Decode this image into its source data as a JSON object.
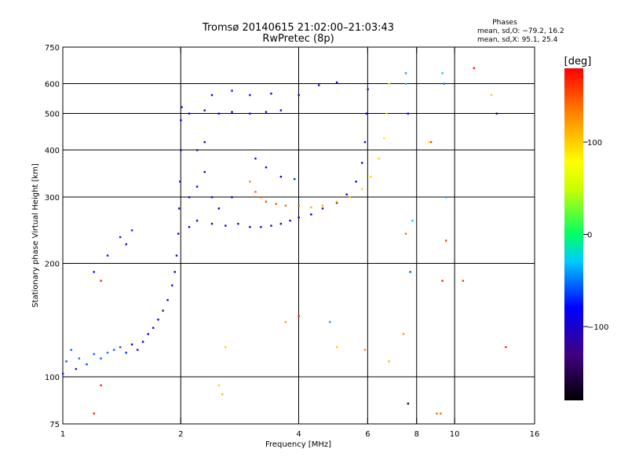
{
  "header": {
    "title_line1": "Tromsø 20140615 21:02:00–21:03:43",
    "title_line2": "RwPretec (8p)",
    "stats_title": "Phases",
    "stats_o": "mean, sd,O: −79.2, 16.2",
    "stats_x": "mean, sd,X:  95.1, 25.4"
  },
  "colorbar": {
    "label": "[deg]",
    "ticks": [
      {
        "value": 100,
        "label": "100"
      },
      {
        "value": 0,
        "label": "0"
      },
      {
        "value": -100,
        "label": "−100"
      }
    ],
    "range": [
      -180,
      180
    ]
  },
  "chart_data": {
    "type": "scatter",
    "xlabel": "Frequency [MHz]",
    "ylabel": "Stationary phase Virtual Height [km]",
    "xscale": "log",
    "yscale": "log",
    "xlim": [
      1,
      16
    ],
    "ylim": [
      75,
      750
    ],
    "xticks": [
      {
        "value": 1,
        "label": "1"
      },
      {
        "value": 2,
        "label": "2"
      },
      {
        "value": 4,
        "label": "4"
      },
      {
        "value": 6,
        "label": "6"
      },
      {
        "value": 8,
        "label": "8"
      },
      {
        "value": 10,
        "label": "10"
      },
      {
        "value": 16,
        "label": "16"
      }
    ],
    "yticks": [
      {
        "value": 75,
        "label": "75"
      },
      {
        "value": 100,
        "label": "100"
      },
      {
        "value": 200,
        "label": "200"
      },
      {
        "value": 300,
        "label": "300"
      },
      {
        "value": 400,
        "label": "400"
      },
      {
        "value": 500,
        "label": "500"
      },
      {
        "value": 600,
        "label": "600"
      },
      {
        "value": 750,
        "label": "750"
      }
    ],
    "xgrid": [
      2,
      4,
      6,
      8,
      10
    ],
    "ygrid": [
      100,
      200,
      300,
      400,
      500,
      600
    ],
    "color_by": "phase [deg]",
    "points": [
      {
        "f": 1.0,
        "h": 102,
        "p": -70
      },
      {
        "f": 1.02,
        "h": 110,
        "p": -60
      },
      {
        "f": 1.05,
        "h": 118,
        "p": -55
      },
      {
        "f": 1.08,
        "h": 105,
        "p": -75
      },
      {
        "f": 1.1,
        "h": 112,
        "p": -50
      },
      {
        "f": 1.15,
        "h": 108,
        "p": -65
      },
      {
        "f": 1.2,
        "h": 115,
        "p": -55
      },
      {
        "f": 1.25,
        "h": 112,
        "p": -60
      },
      {
        "f": 1.3,
        "h": 116,
        "p": -50
      },
      {
        "f": 1.35,
        "h": 118,
        "p": -55
      },
      {
        "f": 1.4,
        "h": 120,
        "p": -60
      },
      {
        "f": 1.45,
        "h": 116,
        "p": -70
      },
      {
        "f": 1.5,
        "h": 122,
        "p": -80
      },
      {
        "f": 1.55,
        "h": 118,
        "p": -75
      },
      {
        "f": 1.6,
        "h": 124,
        "p": -85
      },
      {
        "f": 1.65,
        "h": 130,
        "p": -90
      },
      {
        "f": 1.7,
        "h": 135,
        "p": -95
      },
      {
        "f": 1.75,
        "h": 142,
        "p": -90
      },
      {
        "f": 1.8,
        "h": 150,
        "p": -95
      },
      {
        "f": 1.85,
        "h": 160,
        "p": -90
      },
      {
        "f": 1.9,
        "h": 175,
        "p": -95
      },
      {
        "f": 1.93,
        "h": 190,
        "p": -90
      },
      {
        "f": 1.95,
        "h": 210,
        "p": -85
      },
      {
        "f": 1.97,
        "h": 240,
        "p": -90
      },
      {
        "f": 1.98,
        "h": 280,
        "p": -95
      },
      {
        "f": 1.99,
        "h": 330,
        "p": -90
      },
      {
        "f": 2.0,
        "h": 400,
        "p": -95
      },
      {
        "f": 2.0,
        "h": 480,
        "p": -90
      },
      {
        "f": 2.01,
        "h": 520,
        "p": -100
      },
      {
        "f": 1.2,
        "h": 190,
        "p": -80
      },
      {
        "f": 1.3,
        "h": 210,
        "p": -85
      },
      {
        "f": 1.4,
        "h": 235,
        "p": -75
      },
      {
        "f": 1.5,
        "h": 245,
        "p": -70
      },
      {
        "f": 1.45,
        "h": 225,
        "p": -85
      },
      {
        "f": 2.1,
        "h": 300,
        "p": -95
      },
      {
        "f": 2.2,
        "h": 320,
        "p": -90
      },
      {
        "f": 2.3,
        "h": 350,
        "p": -85
      },
      {
        "f": 2.4,
        "h": 300,
        "p": -90
      },
      {
        "f": 2.5,
        "h": 280,
        "p": -85
      },
      {
        "f": 2.7,
        "h": 300,
        "p": -80
      },
      {
        "f": 2.2,
        "h": 400,
        "p": -100
      },
      {
        "f": 2.3,
        "h": 420,
        "p": -95
      },
      {
        "f": 2.1,
        "h": 250,
        "p": -95
      },
      {
        "f": 2.2,
        "h": 260,
        "p": -90
      },
      {
        "f": 2.4,
        "h": 255,
        "p": -90
      },
      {
        "f": 2.6,
        "h": 252,
        "p": -95
      },
      {
        "f": 2.8,
        "h": 255,
        "p": -90
      },
      {
        "f": 3.0,
        "h": 250,
        "p": -95
      },
      {
        "f": 3.2,
        "h": 250,
        "p": -90
      },
      {
        "f": 3.4,
        "h": 252,
        "p": -95
      },
      {
        "f": 3.6,
        "h": 255,
        "p": -90
      },
      {
        "f": 3.8,
        "h": 260,
        "p": -95
      },
      {
        "f": 4.0,
        "h": 265,
        "p": -90
      },
      {
        "f": 4.3,
        "h": 270,
        "p": -95
      },
      {
        "f": 4.6,
        "h": 280,
        "p": -90
      },
      {
        "f": 5.0,
        "h": 290,
        "p": -95
      },
      {
        "f": 5.3,
        "h": 305,
        "p": -90
      },
      {
        "f": 5.6,
        "h": 330,
        "p": -95
      },
      {
        "f": 5.8,
        "h": 370,
        "p": -100
      },
      {
        "f": 5.9,
        "h": 420,
        "p": -100
      },
      {
        "f": 5.95,
        "h": 500,
        "p": -95
      },
      {
        "f": 6.0,
        "h": 580,
        "p": -100
      },
      {
        "f": 2.1,
        "h": 500,
        "p": -90
      },
      {
        "f": 2.3,
        "h": 510,
        "p": -95
      },
      {
        "f": 2.5,
        "h": 500,
        "p": -90
      },
      {
        "f": 2.7,
        "h": 505,
        "p": -95
      },
      {
        "f": 3.0,
        "h": 500,
        "p": -90
      },
      {
        "f": 3.3,
        "h": 505,
        "p": -95
      },
      {
        "f": 3.6,
        "h": 510,
        "p": -90
      },
      {
        "f": 4.0,
        "h": 560,
        "p": -95
      },
      {
        "f": 4.5,
        "h": 595,
        "p": -90
      },
      {
        "f": 5.0,
        "h": 605,
        "p": -95
      },
      {
        "f": 2.4,
        "h": 560,
        "p": -85
      },
      {
        "f": 2.7,
        "h": 575,
        "p": -75
      },
      {
        "f": 3.0,
        "h": 560,
        "p": -80
      },
      {
        "f": 3.4,
        "h": 565,
        "p": -85
      },
      {
        "f": 3.1,
        "h": 380,
        "p": -100
      },
      {
        "f": 3.3,
        "h": 360,
        "p": -90
      },
      {
        "f": 3.6,
        "h": 340,
        "p": -80
      },
      {
        "f": 3.9,
        "h": 335,
        "p": -70
      },
      {
        "f": 3.0,
        "h": 330,
        "p": 130
      },
      {
        "f": 3.1,
        "h": 310,
        "p": 140
      },
      {
        "f": 3.2,
        "h": 300,
        "p": 145
      },
      {
        "f": 3.3,
        "h": 292,
        "p": 150
      },
      {
        "f": 3.5,
        "h": 288,
        "p": 148
      },
      {
        "f": 3.7,
        "h": 285,
        "p": 140
      },
      {
        "f": 4.0,
        "h": 285,
        "p": 150
      },
      {
        "f": 4.3,
        "h": 282,
        "p": 115
      },
      {
        "f": 4.6,
        "h": 285,
        "p": 110
      },
      {
        "f": 5.0,
        "h": 292,
        "p": 100
      },
      {
        "f": 5.4,
        "h": 300,
        "p": 105
      },
      {
        "f": 5.8,
        "h": 315,
        "p": 100
      },
      {
        "f": 6.1,
        "h": 340,
        "p": 95
      },
      {
        "f": 6.4,
        "h": 380,
        "p": 100
      },
      {
        "f": 6.6,
        "h": 430,
        "p": 90
      },
      {
        "f": 6.7,
        "h": 500,
        "p": 95
      },
      {
        "f": 6.8,
        "h": 600,
        "p": 90
      },
      {
        "f": 7.5,
        "h": 640,
        "p": -40
      },
      {
        "f": 7.5,
        "h": 600,
        "p": -30
      },
      {
        "f": 7.6,
        "h": 500,
        "p": -80
      },
      {
        "f": 9.3,
        "h": 640,
        "p": -30
      },
      {
        "f": 9.4,
        "h": 600,
        "p": -50
      },
      {
        "f": 9.5,
        "h": 300,
        "p": -40
      },
      {
        "f": 7.8,
        "h": 260,
        "p": -30
      },
      {
        "f": 7.5,
        "h": 240,
        "p": 140
      },
      {
        "f": 8.7,
        "h": 420,
        "p": 160
      },
      {
        "f": 8.6,
        "h": 420,
        "p": 60
      },
      {
        "f": 9.5,
        "h": 230,
        "p": 160
      },
      {
        "f": 12.8,
        "h": 500,
        "p": -150
      },
      {
        "f": 11.2,
        "h": 660,
        "p": 170
      },
      {
        "f": 12.4,
        "h": 560,
        "p": 100
      },
      {
        "f": 10.5,
        "h": 180,
        "p": 160
      },
      {
        "f": 13.5,
        "h": 120,
        "p": 170
      },
      {
        "f": 1.25,
        "h": 180,
        "p": 170
      },
      {
        "f": 1.2,
        "h": 80,
        "p": 170
      },
      {
        "f": 1.25,
        "h": 95,
        "p": 170
      },
      {
        "f": 2.5,
        "h": 95,
        "p": 100
      },
      {
        "f": 2.55,
        "h": 90,
        "p": 110
      },
      {
        "f": 2.6,
        "h": 120,
        "p": 100
      },
      {
        "f": 4.0,
        "h": 145,
        "p": 170
      },
      {
        "f": 3.7,
        "h": 140,
        "p": 120
      },
      {
        "f": 4.8,
        "h": 140,
        "p": -40
      },
      {
        "f": 5.0,
        "h": 120,
        "p": 100
      },
      {
        "f": 5.9,
        "h": 118,
        "p": 130
      },
      {
        "f": 6.8,
        "h": 110,
        "p": 110
      },
      {
        "f": 7.4,
        "h": 130,
        "p": 120
      },
      {
        "f": 7.6,
        "h": 85,
        "p": -150
      },
      {
        "f": 9.0,
        "h": 80,
        "p": 140
      },
      {
        "f": 9.2,
        "h": 80,
        "p": 140
      },
      {
        "f": 7.7,
        "h": 190,
        "p": -60
      },
      {
        "f": 9.3,
        "h": 180,
        "p": 170
      }
    ]
  }
}
